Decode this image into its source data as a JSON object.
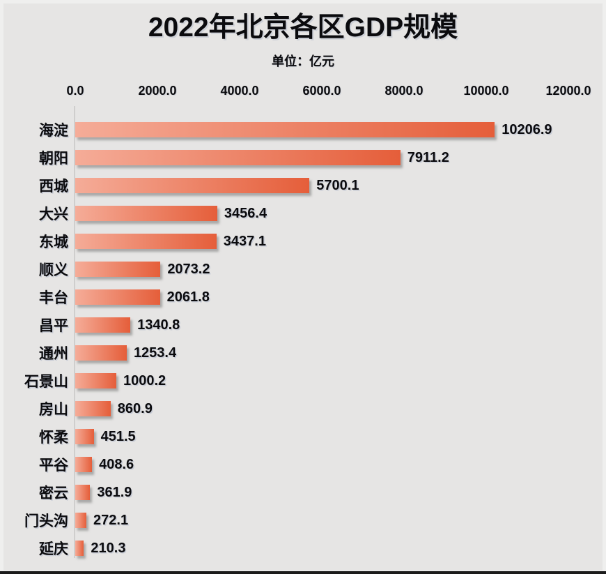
{
  "title": "2022年北京各区GDP规模",
  "subtitle": "单位：亿元",
  "colors": {
    "background": "#e6e5e4",
    "bar_gradient_start": "#f5ac98",
    "bar_gradient_end": "#e55e3a",
    "text": "#0b0b0e",
    "axis_line": "#cfcecd",
    "bottom_line": "#1b1b1b"
  },
  "chart_data": {
    "type": "bar",
    "orientation": "horizontal",
    "title": "2022年北京各区GDP规模",
    "subtitle": "单位：亿元",
    "xlabel": "",
    "ylabel": "",
    "xlim": [
      0,
      12000
    ],
    "x_ticks": [
      "0.0",
      "2000.0",
      "4000.0",
      "6000.0",
      "8000.0",
      "10000.0",
      "12000.0"
    ],
    "grid": false,
    "legend": false,
    "categories": [
      "海淀",
      "朝阳",
      "西城",
      "大兴",
      "东城",
      "顺义",
      "丰台",
      "昌平",
      "通州",
      "石景山",
      "房山",
      "怀柔",
      "平谷",
      "密云",
      "门头沟",
      "延庆"
    ],
    "values": [
      10206.9,
      7911.2,
      5700.1,
      3456.4,
      3437.1,
      2073.2,
      2061.8,
      1340.8,
      1253.4,
      1000.2,
      860.9,
      451.5,
      408.6,
      361.9,
      272.1,
      210.3
    ],
    "value_labels": [
      "10206.9",
      "7911.2",
      "5700.1",
      "3456.4",
      "3437.1",
      "2073.2",
      "2061.8",
      "1340.8",
      "1253.4",
      "1000.2",
      "860.9",
      "451.5",
      "408.6",
      "361.9",
      "272.1",
      "210.3"
    ]
  }
}
